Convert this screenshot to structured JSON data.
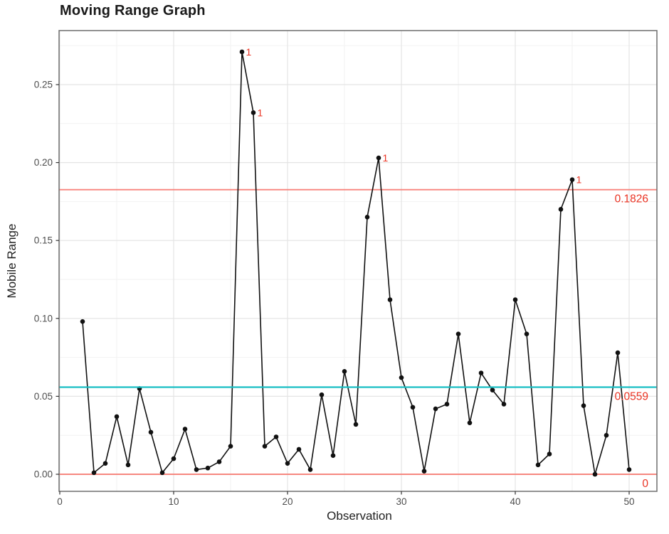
{
  "chart_data": {
    "type": "line",
    "chart_kind": "moving-range-control-chart",
    "title": "Moving Range Graph",
    "xlabel": "Observation",
    "ylabel": "Mobile Range",
    "x": [
      2,
      3,
      4,
      5,
      6,
      7,
      8,
      9,
      10,
      11,
      12,
      13,
      14,
      15,
      16,
      17,
      18,
      19,
      20,
      21,
      22,
      23,
      24,
      25,
      26,
      27,
      28,
      29,
      30,
      31,
      32,
      33,
      34,
      35,
      36,
      37,
      38,
      39,
      40,
      41,
      42,
      43,
      44,
      45,
      46,
      47,
      48,
      49,
      50
    ],
    "values": [
      0.098,
      0.001,
      0.007,
      0.037,
      0.006,
      0.055,
      0.027,
      0.001,
      0.01,
      0.029,
      0.003,
      0.004,
      0.008,
      0.018,
      0.271,
      0.232,
      0.018,
      0.024,
      0.007,
      0.016,
      0.003,
      0.051,
      0.012,
      0.066,
      0.032,
      0.165,
      0.203,
      0.112,
      0.062,
      0.043,
      0.002,
      0.042,
      0.045,
      0.09,
      0.033,
      0.065,
      0.054,
      0.045,
      0.112,
      0.09,
      0.006,
      0.013,
      0.17,
      0.189,
      0.044,
      0.0,
      0.025,
      0.078,
      0.003
    ],
    "xlim": [
      -0.1,
      52.4
    ],
    "ylim": [
      -0.011,
      0.285
    ],
    "x_ticks": {
      "values": [
        0,
        10,
        20,
        30,
        40,
        50
      ],
      "labels": [
        "0",
        "10",
        "20",
        "30",
        "40",
        "50"
      ]
    },
    "y_ticks": {
      "values": [
        0,
        0.05,
        0.1,
        0.15,
        0.2,
        0.25
      ],
      "labels": [
        "0.00",
        "0.05",
        "0.10",
        "0.15",
        "0.20",
        "0.25"
      ]
    },
    "x_minor_ticks": [
      5,
      15,
      25,
      35,
      45
    ],
    "y_minor_ticks": [
      0.025,
      0.075,
      0.125,
      0.175,
      0.225,
      0.275
    ],
    "grid": true,
    "legend_position": "none",
    "reference_lines": [
      {
        "id": "ucl",
        "value": 0.1826,
        "label": "0.1826",
        "color": "#F8766D"
      },
      {
        "id": "center",
        "value": 0.0559,
        "label": "0.0559",
        "color": "#17BEC3"
      },
      {
        "id": "lcl",
        "value": 0,
        "label": "0",
        "color": "#F8766D"
      }
    ],
    "out_of_control_points": [
      {
        "x": 16,
        "label": "1"
      },
      {
        "x": 17,
        "label": "1"
      },
      {
        "x": 28,
        "label": "1"
      },
      {
        "x": 45,
        "label": "1"
      }
    ],
    "colors": {
      "series": "#111111",
      "limit_line": "#F8766D",
      "center_line": "#17BEC3",
      "annotation_text": "#EA3323",
      "grid_major": "#E4E4E4",
      "grid_minor": "#F2F2F2",
      "panel_border": "#6E6E6E",
      "tick_mark": "#333333",
      "tick_label": "#4D4D4D",
      "axis_title": "#1F1F1F",
      "title": "#1A1A1A"
    }
  }
}
